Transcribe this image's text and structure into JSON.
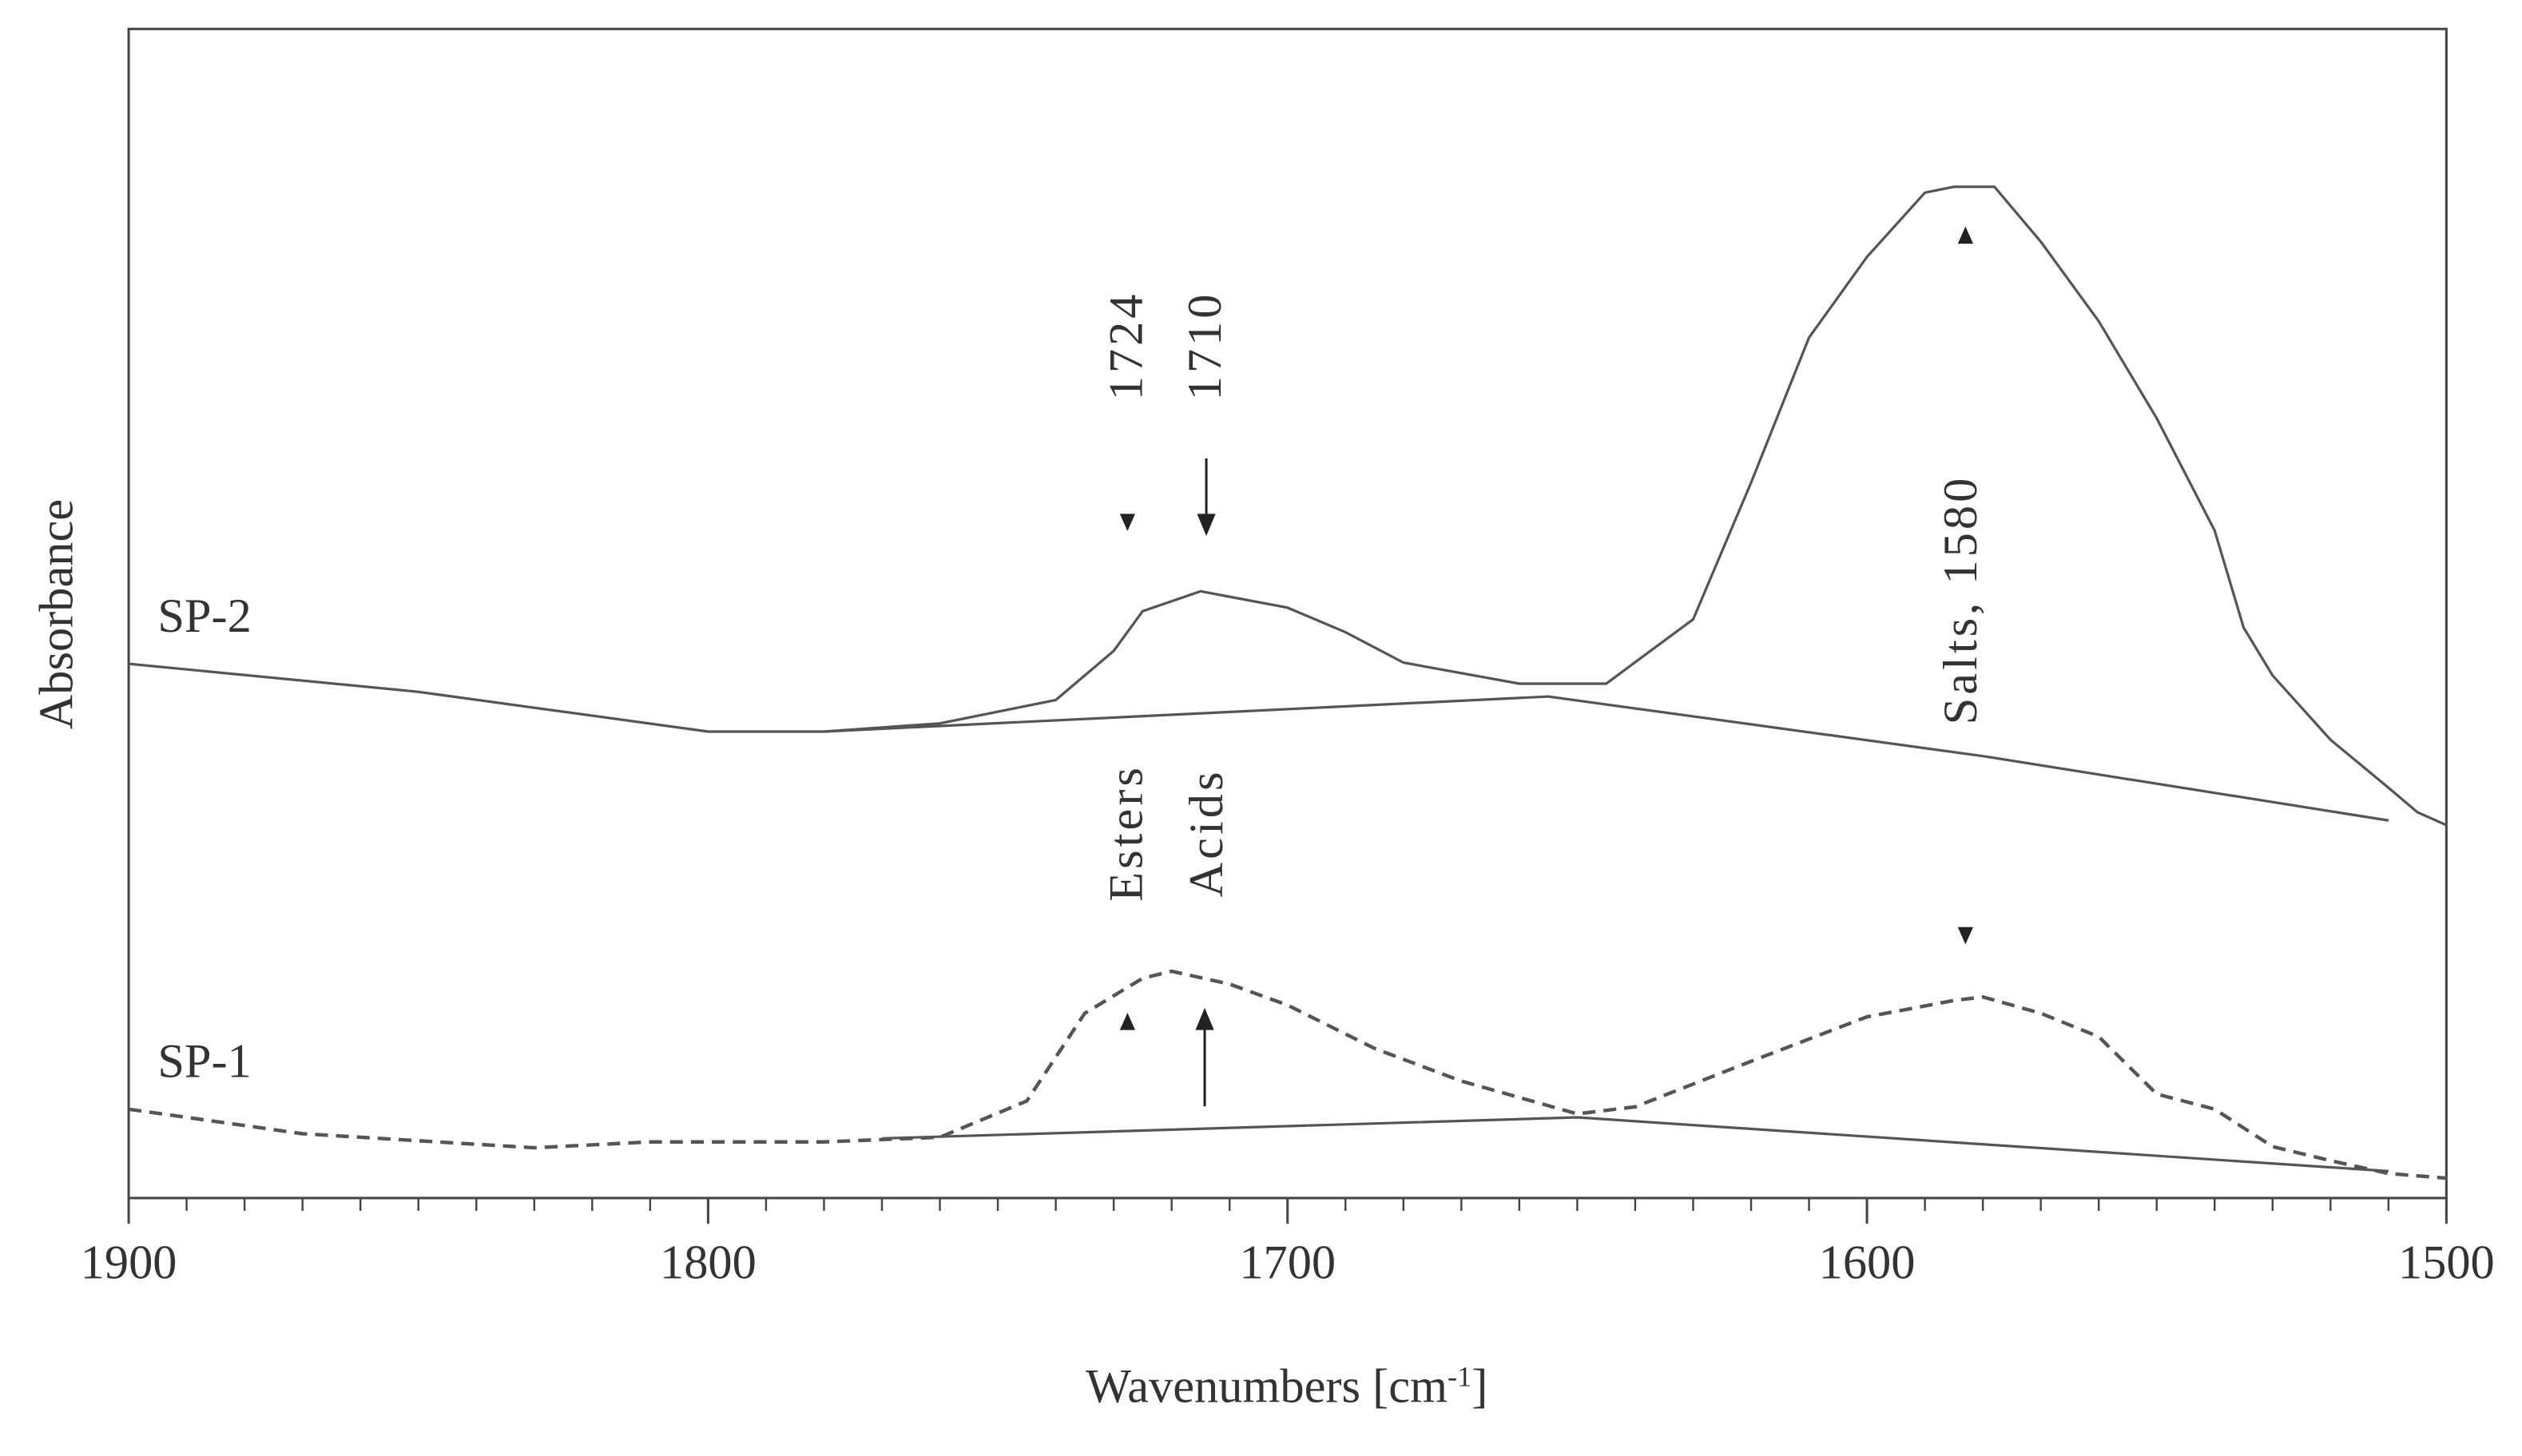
{
  "chart_data": {
    "type": "line",
    "xlabel": [
      "Wavenumbers [cm",
      "-1",
      "]"
    ],
    "ylabel": "Absorbance",
    "xlim": [
      1900,
      1500
    ],
    "ylim": [
      0,
      1
    ],
    "xticks": [
      1900,
      1800,
      1700,
      1600,
      1500
    ],
    "color": "#555555",
    "series": [
      {
        "name": "SP-2",
        "dashed": false,
        "x": [
          1900,
          1850,
          1800,
          1780,
          1760,
          1740,
          1730,
          1725,
          1715,
          1700,
          1690,
          1680,
          1660,
          1645,
          1630,
          1620,
          1610,
          1600,
          1590,
          1585,
          1578,
          1570,
          1560,
          1550,
          1540,
          1535,
          1530,
          1520,
          1510,
          1505,
          1500
        ],
        "values": [
          0.457,
          0.433,
          0.399,
          0.399,
          0.406,
          0.426,
          0.468,
          0.502,
          0.519,
          0.505,
          0.484,
          0.458,
          0.44,
          0.44,
          0.495,
          0.612,
          0.736,
          0.805,
          0.86,
          0.865,
          0.865,
          0.818,
          0.75,
          0.667,
          0.571,
          0.488,
          0.447,
          0.392,
          0.351,
          0.33,
          0.319
        ]
      },
      {
        "x": [
          1780,
          1655,
          1580,
          1510
        ],
        "values": [
          0.399,
          0.429,
          0.378,
          0.323
        ],
        "dashed": false
      },
      {
        "name": "SP-1",
        "dashed": true,
        "x": [
          1900,
          1870,
          1830,
          1810,
          1780,
          1760,
          1745,
          1735,
          1725,
          1720,
          1710,
          1700,
          1685,
          1670,
          1650,
          1640,
          1620,
          1600,
          1585,
          1580,
          1570,
          1560,
          1550,
          1540,
          1530,
          1520,
          1510,
          1500
        ],
        "values": [
          0.076,
          0.055,
          0.043,
          0.048,
          0.048,
          0.052,
          0.083,
          0.158,
          0.188,
          0.194,
          0.183,
          0.165,
          0.128,
          0.1,
          0.072,
          0.078,
          0.117,
          0.155,
          0.169,
          0.172,
          0.158,
          0.138,
          0.089,
          0.076,
          0.044,
          0.032,
          0.021,
          0.017
        ]
      },
      {
        "x": [
          1770,
          1650,
          1510
        ],
        "values": [
          0.051,
          0.069,
          0.023
        ],
        "dashed": false
      }
    ],
    "annotations": [
      "1724",
      "1710",
      "Esters",
      "Acids",
      "Salts, 1580"
    ]
  }
}
